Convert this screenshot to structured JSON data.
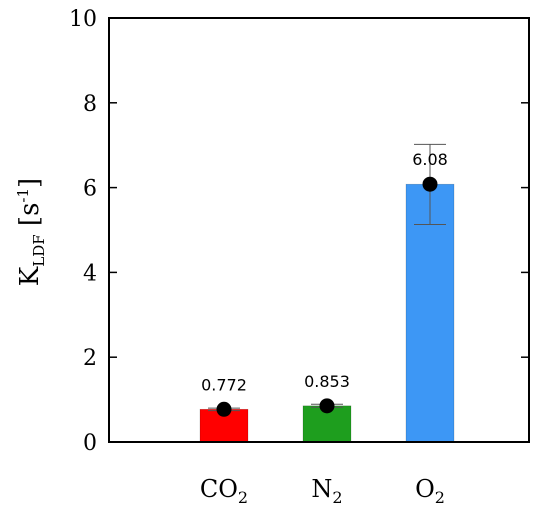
{
  "chart_data": {
    "type": "bar",
    "categories": [
      {
        "base": "CO",
        "sub": "2"
      },
      {
        "base": "N",
        "sub": "2"
      },
      {
        "base": "O",
        "sub": "2"
      }
    ],
    "values": [
      0.772,
      0.853,
      6.08
    ],
    "data_labels": [
      "0.772",
      "0.853",
      "6.08"
    ],
    "error_bars": [
      {
        "low": 0.74,
        "high": 0.8
      },
      {
        "low": 0.82,
        "high": 0.89
      },
      {
        "low": 5.13,
        "high": 7.02
      }
    ],
    "colors": [
      "#ff0000",
      "#1e9e1e",
      "#3d97f5"
    ],
    "marker_color": "#000000",
    "ylabel": {
      "base": "K",
      "sub": "LDF",
      "unit_prefix": " [s",
      "sup": "-1",
      "unit_suffix": "]"
    },
    "ylim": [
      0,
      10
    ],
    "yticks": [
      "0",
      "2",
      "4",
      "6",
      "8",
      "10"
    ],
    "grid": false,
    "legend": "none"
  }
}
